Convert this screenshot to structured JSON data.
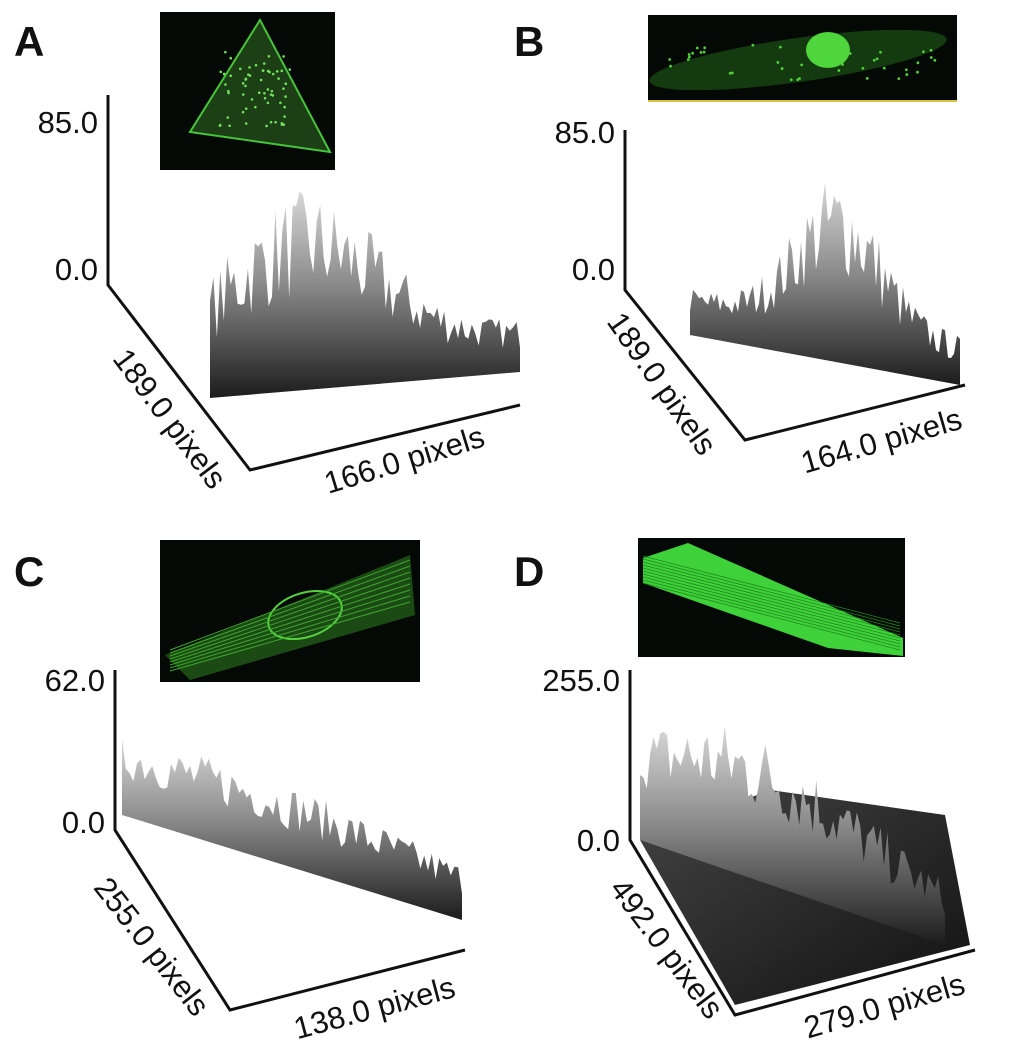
{
  "panels": [
    {
      "label": "A",
      "z_max": "85.0",
      "z_min": "0.0",
      "depth_label": "189.0 pixels",
      "width_label": "166.0 pixels"
    },
    {
      "label": "B",
      "z_max": "85.0",
      "z_min": "0.0",
      "depth_label": "189.0 pixels",
      "width_label": "164.0 pixels"
    },
    {
      "label": "C",
      "z_max": "62.0",
      "z_min": "0.0",
      "depth_label": "255.0 pixels",
      "width_label": "138.0 pixels"
    },
    {
      "label": "D",
      "z_max": "255.0",
      "z_min": "0.0",
      "depth_label": "492.0 pixels",
      "width_label": "279.0 pixels"
    }
  ]
}
